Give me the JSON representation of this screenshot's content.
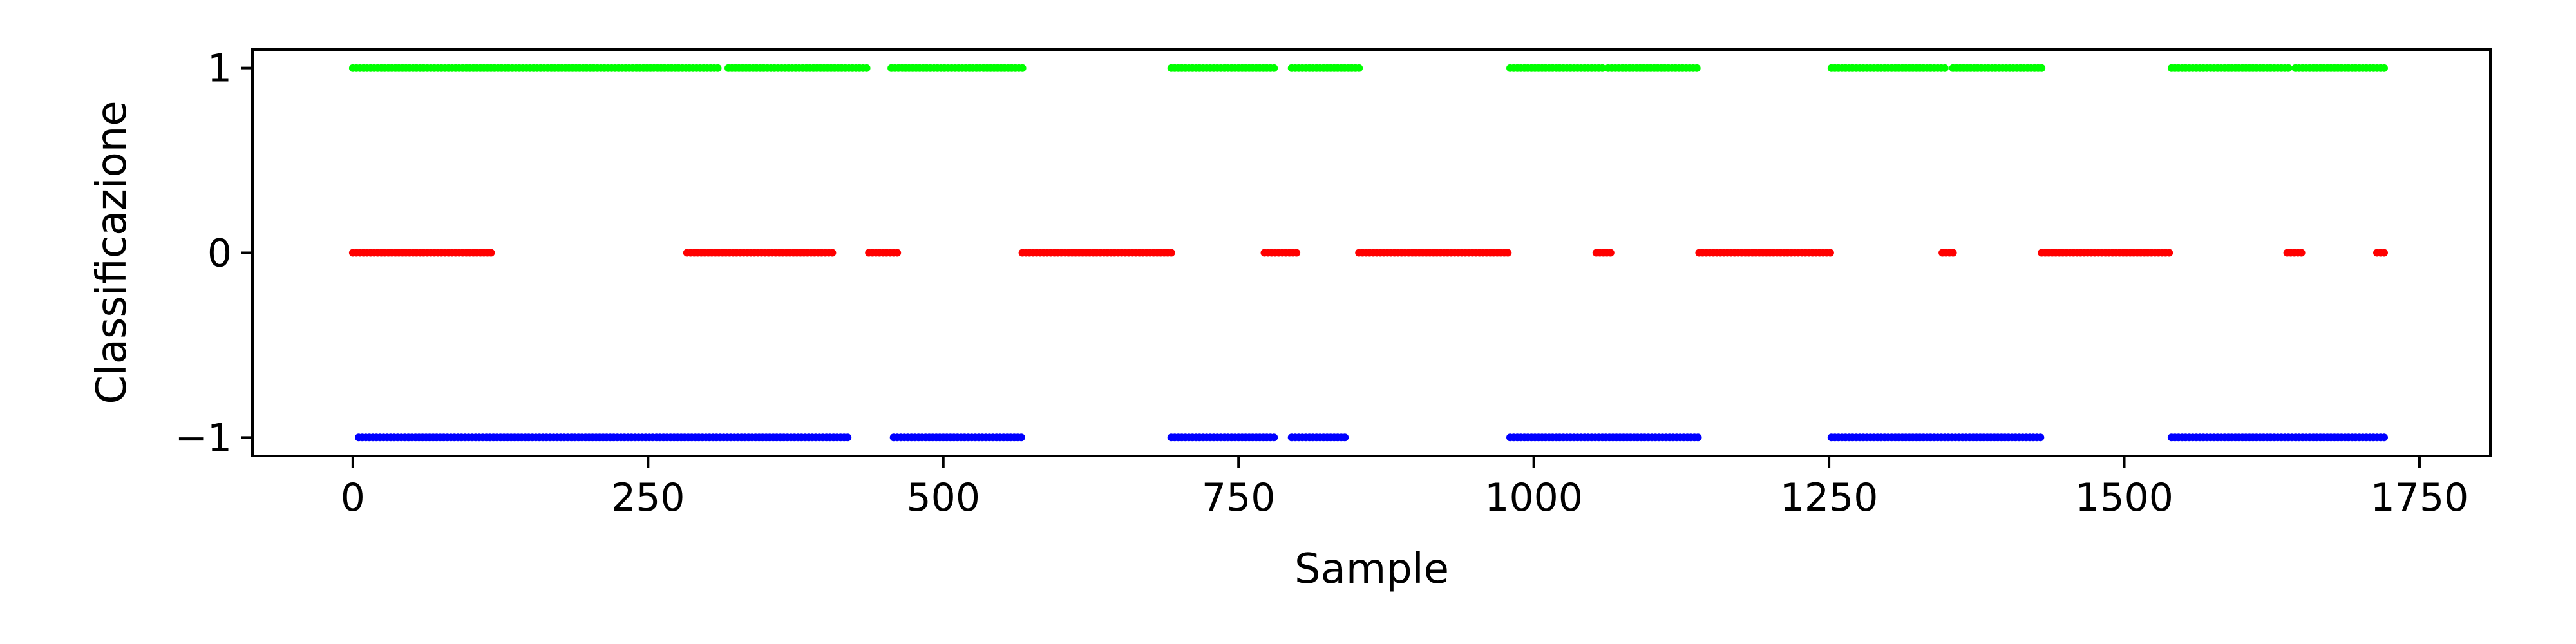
{
  "chart_data": {
    "type": "scatter",
    "title": "",
    "xlabel": "Sample",
    "ylabel": "Classificazione",
    "xlim": [
      -85,
      1810
    ],
    "ylim": [
      -1.1,
      1.1
    ],
    "x_ticks": [
      0,
      250,
      500,
      750,
      1000,
      1250,
      1500,
      1750
    ],
    "x_tick_labels": [
      "0",
      "250",
      "500",
      "750",
      "1000",
      "1250",
      "1500",
      "1750"
    ],
    "y_ticks": [
      -1,
      0,
      1
    ],
    "y_tick_labels": [
      "−1",
      "0",
      "1"
    ],
    "grid": false,
    "legend": "none",
    "series": [
      {
        "value": 1,
        "color": "#00ff00",
        "segments": [
          [
            0,
            310
          ],
          [
            318,
            437
          ],
          [
            456,
            567
          ],
          [
            693,
            780
          ],
          [
            795,
            852
          ],
          [
            980,
            1058
          ],
          [
            1063,
            1140
          ],
          [
            1252,
            1350
          ],
          [
            1355,
            1430
          ],
          [
            1540,
            1640
          ],
          [
            1645,
            1722
          ]
        ]
      },
      {
        "value": 0,
        "color": "#ff0000",
        "segments": [
          [
            0,
            118
          ],
          [
            283,
            408
          ],
          [
            437,
            461
          ],
          [
            567,
            693
          ],
          [
            772,
            800
          ],
          [
            852,
            980
          ],
          [
            1053,
            1066
          ],
          [
            1140,
            1252
          ],
          [
            1346,
            1357
          ],
          [
            1430,
            1540
          ],
          [
            1638,
            1651
          ],
          [
            1714,
            1722
          ]
        ]
      },
      {
        "value": -1,
        "color": "#0000ff",
        "segments": [
          [
            5,
            420
          ],
          [
            458,
            567
          ],
          [
            693,
            780
          ],
          [
            795,
            840
          ],
          [
            980,
            1140
          ],
          [
            1252,
            1430
          ],
          [
            1540,
            1722
          ]
        ]
      }
    ]
  }
}
